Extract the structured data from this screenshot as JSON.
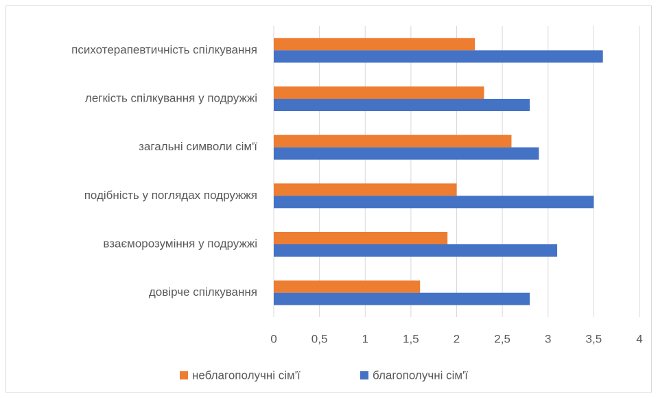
{
  "chart_data": {
    "type": "hbar",
    "categories": [
      "психотерапевтичність спілкування",
      "легкість спілкування у подружжі",
      "загальні символи сім'ї",
      "подібність у поглядах подружжя",
      "взаєморозуміння у подружжі",
      "довірче спілкування"
    ],
    "series": [
      {
        "name": "неблагополучні сім'ї",
        "color": "#ed7d31",
        "values": [
          2.2,
          2.3,
          2.6,
          2.0,
          1.9,
          1.6
        ]
      },
      {
        "name": "благополучні сім'ї",
        "color": "#4472c4",
        "values": [
          3.6,
          2.8,
          2.9,
          3.5,
          3.1,
          2.8
        ]
      }
    ],
    "xlim": [
      0,
      4
    ],
    "xticks": [
      0,
      {
        "value": 0.5,
        "label": "0,5"
      },
      1,
      {
        "value": 1.5,
        "label": "1,5"
      },
      2,
      {
        "value": 2.5,
        "label": "2,5"
      },
      3,
      {
        "value": 3.5,
        "label": "3,5"
      },
      4
    ],
    "grid": true,
    "legend": "bottom"
  }
}
